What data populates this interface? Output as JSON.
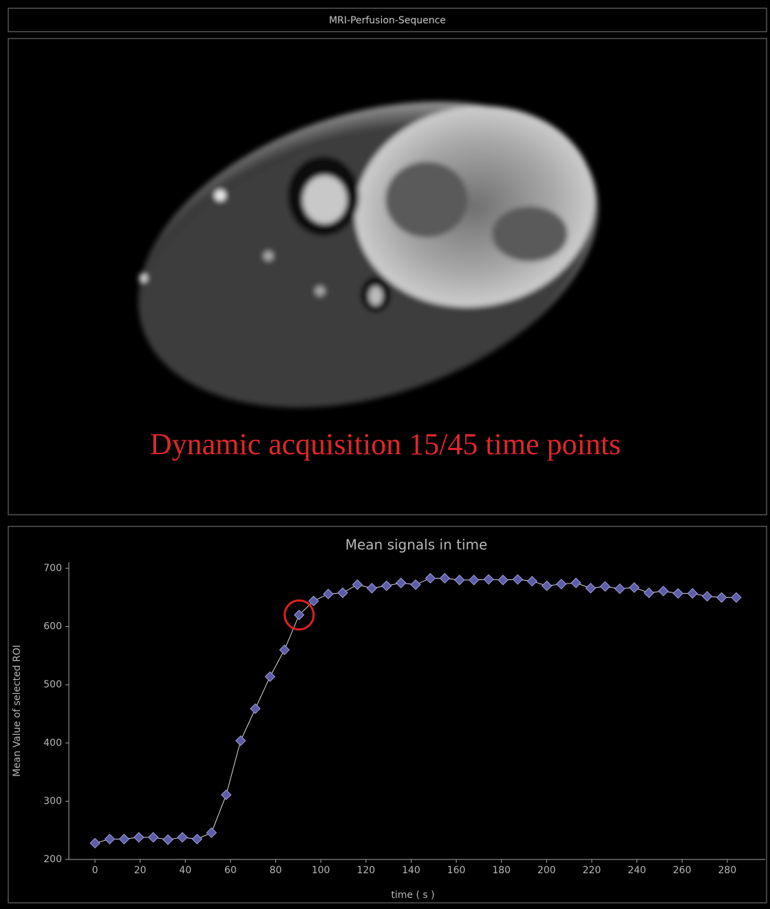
{
  "header": {
    "title": "MRI-Perfusion-Sequence"
  },
  "image": {
    "caption": "Dynamic acquisition 15/45 time points"
  },
  "chart_data": {
    "type": "line",
    "title": "Mean signals in time",
    "xlabel": "time ( s )",
    "ylabel": "Mean Value of selected ROI",
    "x": [
      0,
      6.5,
      12.9,
      19.4,
      25.8,
      32.3,
      38.7,
      45.2,
      51.6,
      58.1,
      64.5,
      71.0,
      77.5,
      83.9,
      90.4,
      96.8,
      103.3,
      109.7,
      116.2,
      122.6,
      129.1,
      135.5,
      142.0,
      148.5,
      154.9,
      161.4,
      167.8,
      174.3,
      180.7,
      187.2,
      193.6,
      200.1,
      206.5,
      213.0,
      219.5,
      225.9,
      232.4,
      238.8,
      245.3,
      251.7,
      258.2,
      264.6,
      271.1,
      277.5,
      284.0
    ],
    "series": [
      {
        "color": "#5c5ca8",
        "values": [
          228,
          235,
          235,
          238,
          238,
          234,
          238,
          235,
          246,
          311,
          404,
          459,
          514,
          560,
          620,
          644,
          656,
          658,
          672,
          666,
          670,
          675,
          672,
          683,
          683,
          680,
          680,
          681,
          680,
          681,
          678,
          670,
          673,
          675,
          666,
          669,
          665,
          667,
          658,
          661,
          657,
          657,
          652,
          650,
          650
        ]
      }
    ],
    "highlight": 14,
    "highlight_color": "#e02020",
    "xlim": [
      -11.6,
      296.8
    ],
    "ylim": [
      200,
      710.6
    ],
    "xticks": [
      0,
      20,
      40,
      60,
      80,
      100,
      120,
      140,
      160,
      180,
      200,
      220,
      240,
      260,
      280
    ],
    "yticks": [
      200,
      300,
      400,
      500,
      600,
      700
    ]
  }
}
